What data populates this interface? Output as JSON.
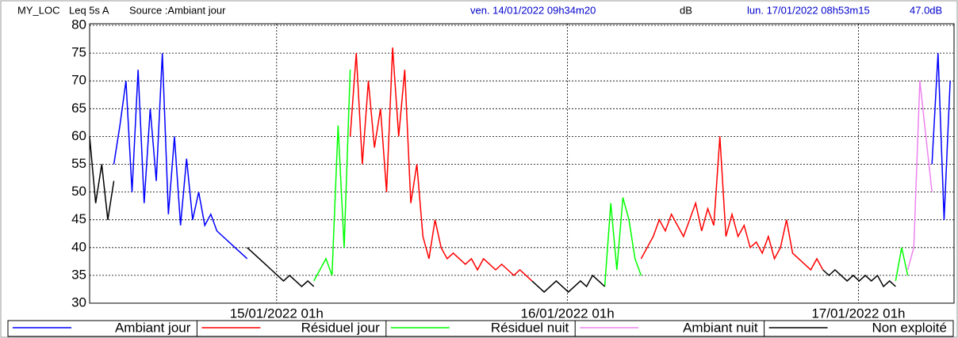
{
  "chart_data": {
    "type": "line",
    "header": [
      "MY_LOC",
      "Leq 5s  A",
      "Source :Ambiant jour"
    ],
    "start": "ven. 14/01/2022 09h34m20",
    "unit": "dB",
    "end": "lun. 17/01/2022 08h53m15",
    "current": "47.0dB",
    "xlim": [
      0,
      71.32
    ],
    "xticks": [
      {
        "value": 15.43,
        "label": "15/01/2022 01h"
      },
      {
        "value": 39.43,
        "label": "16/01/2022 01h"
      },
      {
        "value": 63.43,
        "label": "17/01/2022 01h"
      }
    ],
    "ylim": [
      30,
      80
    ],
    "yticks": [
      30,
      35,
      40,
      45,
      50,
      55,
      60,
      65,
      70,
      75,
      80
    ],
    "grid": true,
    "series": [
      {
        "name": "Ambiant jour",
        "color": "#0000ff",
        "x": [
          2,
          2.5,
          3,
          3.5,
          4,
          4.5,
          5,
          5.5,
          6,
          6.5,
          7,
          7.5,
          8,
          8.5,
          9,
          9.5,
          10,
          10.5,
          11,
          11.5,
          12,
          12.5,
          13,
          13.5,
          69.5,
          70,
          70.5,
          71
        ],
        "values": [
          55,
          62,
          70,
          50,
          72,
          48,
          65,
          52,
          75,
          46,
          60,
          44,
          56,
          45,
          50,
          44,
          46,
          43,
          42,
          41,
          40,
          39,
          38,
          null,
          55,
          75,
          45,
          70
        ]
      },
      {
        "name": "Résiduel jour",
        "color": "#ff0000",
        "x": [
          21.5,
          22,
          22.5,
          23,
          23.5,
          24,
          24.5,
          25,
          25.5,
          26,
          26.5,
          27,
          27.5,
          28,
          28.5,
          29,
          29.5,
          30,
          30.5,
          31,
          31.5,
          32,
          32.5,
          33,
          33.5,
          34,
          34.5,
          35,
          35.5,
          36,
          36.5,
          37,
          45.5,
          46,
          46.5,
          47,
          47.5,
          48,
          48.5,
          49,
          49.5,
          50,
          50.5,
          51,
          51.5,
          52,
          52.5,
          53,
          53.5,
          54,
          54.5,
          55,
          55.5,
          56,
          56.5,
          57,
          57.5,
          58,
          58.5,
          59,
          59.5,
          60,
          60.5
        ],
        "values": [
          60,
          75,
          55,
          70,
          58,
          65,
          50,
          76,
          60,
          72,
          48,
          55,
          42,
          38,
          45,
          40,
          38,
          39,
          38,
          37,
          38,
          36,
          38,
          37,
          36,
          37,
          36,
          35,
          36,
          35,
          34,
          null,
          38,
          40,
          42,
          45,
          43,
          46,
          44,
          42,
          45,
          48,
          43,
          47,
          44,
          60,
          42,
          46,
          42,
          44,
          40,
          41,
          39,
          42,
          38,
          40,
          45,
          39,
          38,
          37,
          36,
          38,
          36
        ]
      },
      {
        "name": "Résiduel nuit",
        "color": "#00ff00",
        "x": [
          18.5,
          19,
          19.5,
          20,
          20.5,
          21,
          21.5,
          22,
          42.5,
          43,
          43.5,
          44,
          44.5,
          45,
          45.5,
          46,
          66.5,
          67,
          67.5
        ],
        "values": [
          34,
          36,
          38,
          35,
          62,
          40,
          72,
          null,
          33,
          48,
          36,
          49,
          45,
          38,
          35,
          null,
          34,
          40,
          35
        ]
      },
      {
        "name": "Ambiant nuit",
        "color": "#ee82ee",
        "x": [
          67.5,
          68,
          68.5,
          69,
          69.5
        ],
        "values": [
          36,
          40,
          70,
          60,
          50
        ]
      },
      {
        "name": "Non exploité",
        "color": "#000000",
        "x": [
          0,
          0.5,
          1,
          1.5,
          2,
          2.5,
          13,
          13.5,
          14,
          14.5,
          15,
          15.5,
          16,
          16.5,
          17,
          17.5,
          18,
          18.5,
          19,
          36.5,
          37,
          37.5,
          38,
          38.5,
          39,
          39.5,
          40,
          40.5,
          41,
          41.5,
          42,
          42.5,
          43,
          60.5,
          61,
          61.5,
          62,
          62.5,
          63,
          63.5,
          64,
          64.5,
          65,
          65.5,
          66,
          66.5
        ],
        "values": [
          60,
          48,
          55,
          45,
          52,
          null,
          40,
          39,
          38,
          37,
          36,
          35,
          34,
          35,
          34,
          33,
          34,
          33,
          null,
          34,
          33,
          32,
          33,
          34,
          33,
          32,
          33,
          34,
          33,
          35,
          34,
          33,
          null,
          36,
          35,
          36,
          35,
          34,
          35,
          34,
          35,
          34,
          35,
          33,
          34,
          33
        ]
      }
    ]
  }
}
